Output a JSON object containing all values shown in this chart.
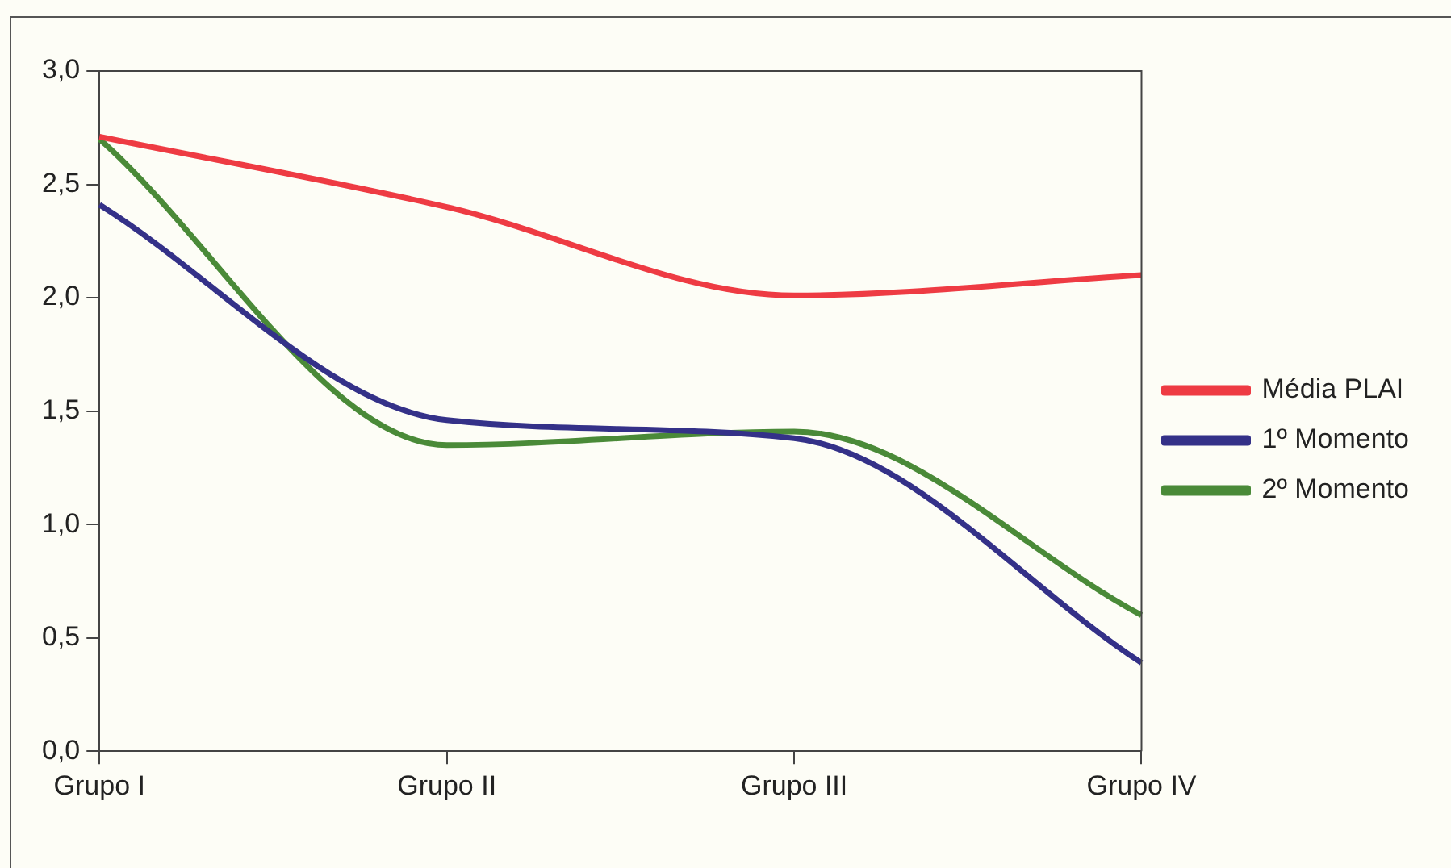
{
  "chart_data": {
    "type": "line",
    "categories": [
      "Grupo I",
      "Grupo II",
      "Grupo III",
      "Grupo IV"
    ],
    "series": [
      {
        "name": "Média PLAI",
        "color": "#ee3b43",
        "values": [
          2.71,
          2.4,
          2.01,
          2.1
        ]
      },
      {
        "name": "1º Momento",
        "color": "#343188",
        "values": [
          2.41,
          1.46,
          1.38,
          0.39
        ]
      },
      {
        "name": "2º Momento",
        "color": "#4a8a38",
        "values": [
          2.7,
          1.35,
          1.41,
          0.6
        ]
      }
    ],
    "ylim": [
      0,
      3
    ],
    "yticks": [
      {
        "value": 0,
        "label": "0,0"
      },
      {
        "value": 0.5,
        "label": "0,5"
      },
      {
        "value": 1,
        "label": "1,0"
      },
      {
        "value": 1.5,
        "label": "1,5"
      },
      {
        "value": 2,
        "label": "2,0"
      },
      {
        "value": 2.5,
        "label": "2,5"
      },
      {
        "value": 3,
        "label": "3,0"
      }
    ],
    "grid": false,
    "legend": "right",
    "marker": "none",
    "line_style": "solid"
  }
}
